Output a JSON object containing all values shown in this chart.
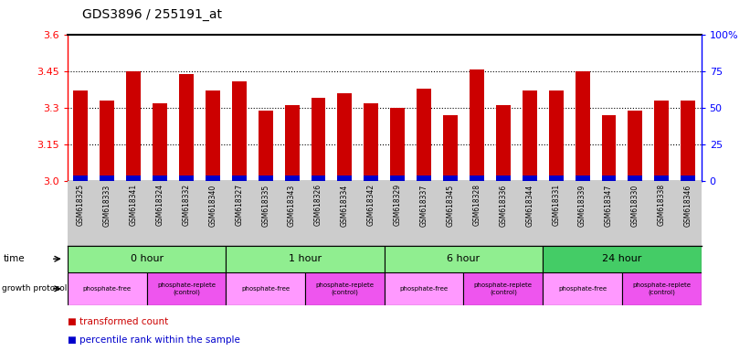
{
  "title": "GDS3896 / 255191_at",
  "samples": [
    "GSM618325",
    "GSM618333",
    "GSM618341",
    "GSM618324",
    "GSM618332",
    "GSM618340",
    "GSM618327",
    "GSM618335",
    "GSM618343",
    "GSM618326",
    "GSM618334",
    "GSM618342",
    "GSM618329",
    "GSM618337",
    "GSM618345",
    "GSM618328",
    "GSM618336",
    "GSM618344",
    "GSM618331",
    "GSM618339",
    "GSM618347",
    "GSM618330",
    "GSM618338",
    "GSM618346"
  ],
  "red_values": [
    3.37,
    3.33,
    3.45,
    3.32,
    3.44,
    3.37,
    3.41,
    3.29,
    3.31,
    3.34,
    3.36,
    3.32,
    3.3,
    3.38,
    3.27,
    3.46,
    3.31,
    3.37,
    3.37,
    3.45,
    3.27,
    3.29,
    3.33,
    3.33
  ],
  "blue_values": [
    0.02,
    0.02,
    0.02,
    0.02,
    0.02,
    0.02,
    0.02,
    0.02,
    0.02,
    0.02,
    0.02,
    0.02,
    0.02,
    0.02,
    0.02,
    0.02,
    0.02,
    0.02,
    0.02,
    0.02,
    0.02,
    0.02,
    0.02,
    0.02
  ],
  "y_min": 3.0,
  "y_max": 3.6,
  "y_ticks_left": [
    3.0,
    3.15,
    3.3,
    3.45,
    3.6
  ],
  "grid_yticks": [
    3.15,
    3.3,
    3.45
  ],
  "right_axis_labels": [
    "0",
    "25",
    "50",
    "75",
    "100%"
  ],
  "right_axis_ticks": [
    0,
    25,
    50,
    75,
    100
  ],
  "time_groups": [
    {
      "label": "0 hour",
      "start": 0,
      "end": 6,
      "color": "#90EE90"
    },
    {
      "label": "1 hour",
      "start": 6,
      "end": 12,
      "color": "#90EE90"
    },
    {
      "label": "6 hour",
      "start": 12,
      "end": 18,
      "color": "#90EE90"
    },
    {
      "label": "24 hour",
      "start": 18,
      "end": 24,
      "color": "#44CC66"
    }
  ],
  "protocol_groups": [
    {
      "label": "phosphate-free",
      "start": 0,
      "end": 3,
      "color": "#FF99FF"
    },
    {
      "label": "phosphate-replete\n(control)",
      "start": 3,
      "end": 6,
      "color": "#EE55EE"
    },
    {
      "label": "phosphate-free",
      "start": 6,
      "end": 9,
      "color": "#FF99FF"
    },
    {
      "label": "phosphate-replete\n(control)",
      "start": 9,
      "end": 12,
      "color": "#EE55EE"
    },
    {
      "label": "phosphate-free",
      "start": 12,
      "end": 15,
      "color": "#FF99FF"
    },
    {
      "label": "phosphate-replete\n(control)",
      "start": 15,
      "end": 18,
      "color": "#EE55EE"
    },
    {
      "label": "phosphate-free",
      "start": 18,
      "end": 21,
      "color": "#FF99FF"
    },
    {
      "label": "phosphate-replete\n(control)",
      "start": 21,
      "end": 24,
      "color": "#EE55EE"
    }
  ],
  "bar_color": "#CC0000",
  "blue_color": "#0000CC",
  "bg_color": "#FFFFFF",
  "left_spine_color": "#CC0000",
  "right_spine_color": "#0000CC",
  "xticklabel_bg": "#CCCCCC"
}
